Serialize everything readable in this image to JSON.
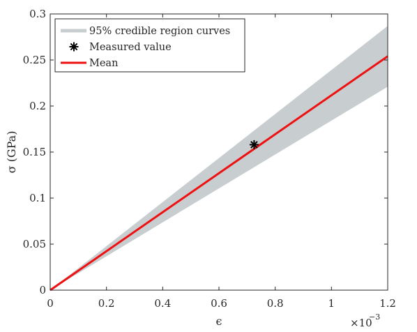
{
  "chart_data": {
    "type": "line",
    "xlabel": "ϵ",
    "ylabel": "σ (GPa)",
    "x_multiplier": "×10",
    "x_multiplier_exponent": "−3",
    "xlim": [
      0,
      1.2
    ],
    "ylim": [
      0,
      0.3
    ],
    "x_ticks": [
      0,
      0.2,
      0.4,
      0.6,
      0.8,
      1.0,
      1.2
    ],
    "x_tick_labels": [
      "0",
      "0.2",
      "0.4",
      "0.6",
      "0.8",
      "1",
      "1.2"
    ],
    "y_ticks": [
      0,
      0.05,
      0.1,
      0.15,
      0.2,
      0.25,
      0.3
    ],
    "y_tick_labels": [
      "0",
      "0.05",
      "0.1",
      "0.15",
      "0.2",
      "0.25",
      "0.3"
    ],
    "legend_position": "top-left",
    "series": [
      {
        "name": "95% credible region curves",
        "kind": "band",
        "color": "#c8cdd0",
        "x": [
          0,
          1.2
        ],
        "lower": [
          0,
          0.221
        ],
        "upper": [
          0,
          0.287
        ]
      },
      {
        "name": "Measured value",
        "kind": "marker",
        "marker": "asterisk",
        "color": "#000000",
        "x": [
          0.725
        ],
        "y": [
          0.158
        ]
      },
      {
        "name": "Mean",
        "kind": "line",
        "color": "#ee1111",
        "x": [
          0,
          1.2
        ],
        "y": [
          0,
          0.254
        ]
      }
    ]
  }
}
